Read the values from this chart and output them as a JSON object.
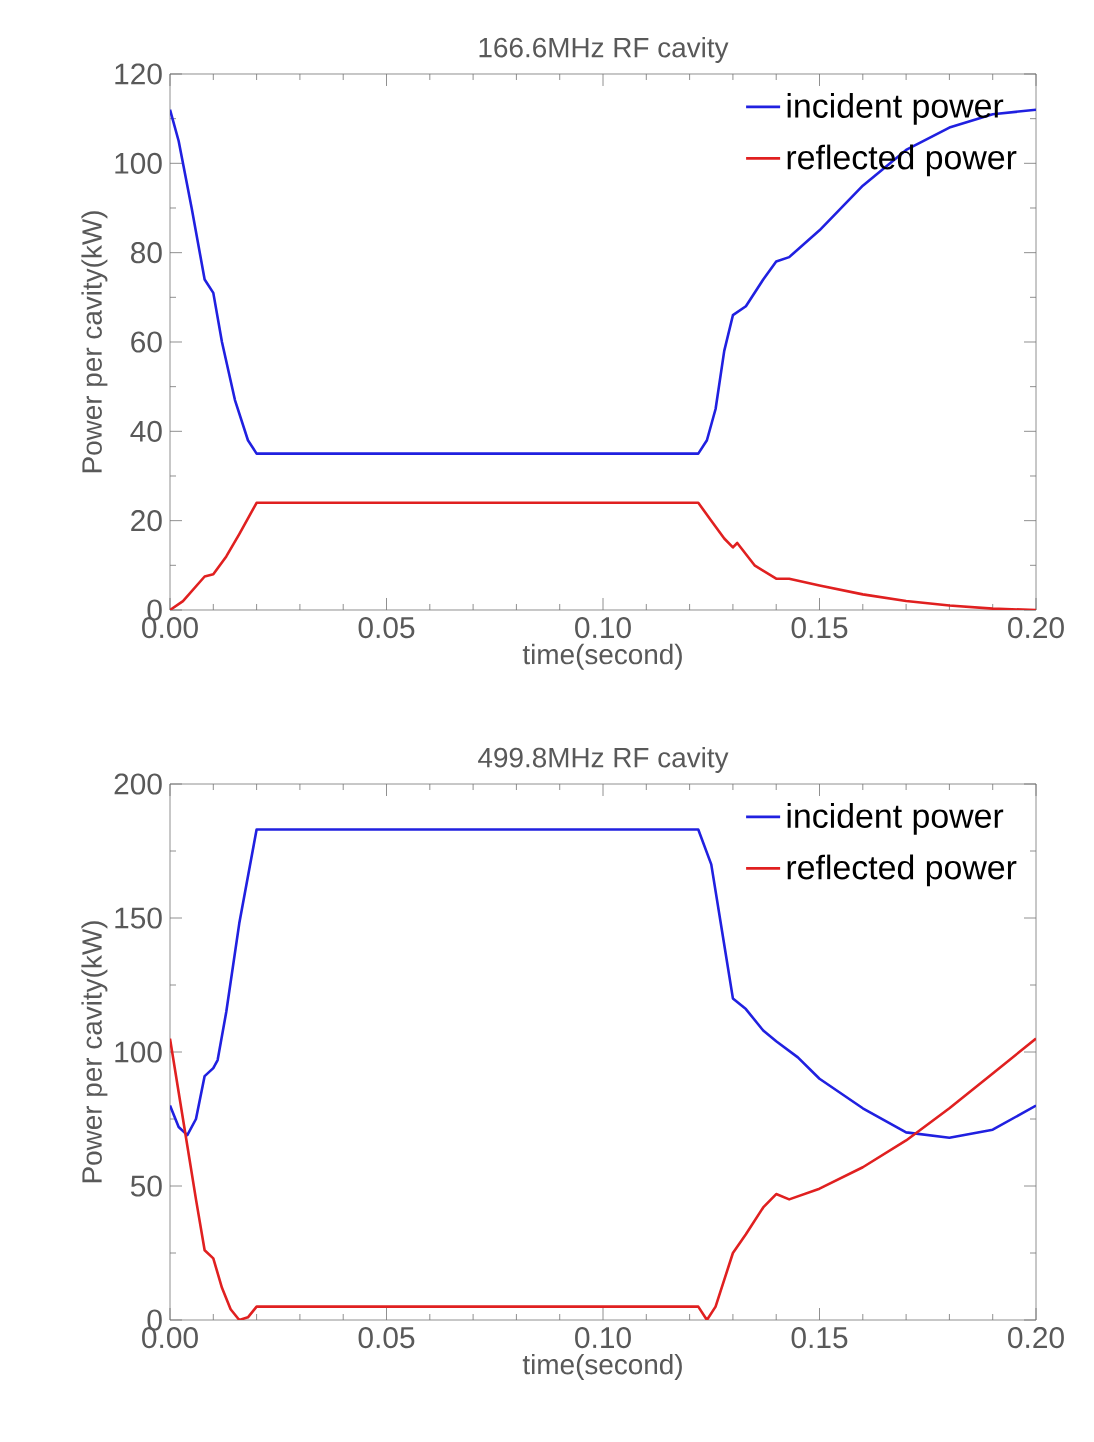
{
  "chart_data": [
    {
      "type": "line",
      "title": "166.6MHz RF cavity",
      "xlabel": "time(second)",
      "ylabel": "Power per cavity(kW)",
      "xlim": [
        0,
        0.2
      ],
      "ylim": [
        0,
        120
      ],
      "xticks": [
        {
          "value": 0,
          "label": "0.00"
        },
        {
          "value": 0.05,
          "label": "0.05"
        },
        {
          "value": 0.1,
          "label": "0.10"
        },
        {
          "value": 0.15,
          "label": "0.15"
        },
        {
          "value": 0.2,
          "label": "0.20"
        }
      ],
      "yticks": [
        0,
        20,
        40,
        60,
        80,
        100,
        120
      ],
      "grid": false,
      "legend": "top right",
      "marker": "none",
      "line_style": "solid",
      "series": [
        {
          "name": "incident power",
          "color": "#2020e0",
          "x": [
            0,
            0.002,
            0.005,
            0.008,
            0.01,
            0.012,
            0.015,
            0.018,
            0.02,
            0.122,
            0.124,
            0.126,
            0.128,
            0.13,
            0.133,
            0.137,
            0.14,
            0.143,
            0.15,
            0.16,
            0.17,
            0.18,
            0.19,
            0.2
          ],
          "values": [
            112,
            105,
            90,
            74,
            71,
            60,
            47,
            38,
            35,
            35,
            38,
            45,
            58,
            66,
            68,
            74,
            78,
            79,
            85,
            95,
            103,
            108,
            111,
            112
          ]
        },
        {
          "name": "reflected power",
          "color": "#e02020",
          "x": [
            0,
            0.003,
            0.008,
            0.01,
            0.013,
            0.016,
            0.02,
            0.122,
            0.125,
            0.128,
            0.13,
            0.131,
            0.135,
            0.14,
            0.143,
            0.15,
            0.16,
            0.17,
            0.18,
            0.19,
            0.2
          ],
          "values": [
            0,
            2,
            7.5,
            8,
            12,
            17,
            24,
            24,
            20,
            16,
            14,
            15,
            10,
            7,
            7,
            5.5,
            3.5,
            2,
            1,
            0.3,
            0
          ]
        }
      ]
    },
    {
      "type": "line",
      "title": "499.8MHz RF cavity",
      "xlabel": "time(second)",
      "ylabel": "Power per cavity(kW)",
      "xlim": [
        0,
        0.2
      ],
      "ylim": [
        0,
        200
      ],
      "xticks": [
        {
          "value": 0,
          "label": "0.00"
        },
        {
          "value": 0.05,
          "label": "0.05"
        },
        {
          "value": 0.1,
          "label": "0.10"
        },
        {
          "value": 0.15,
          "label": "0.15"
        },
        {
          "value": 0.2,
          "label": "0.20"
        }
      ],
      "yticks": [
        0,
        50,
        100,
        150,
        200
      ],
      "grid": false,
      "legend": "top right",
      "marker": "none",
      "line_style": "solid",
      "series": [
        {
          "name": "incident power",
          "color": "#2020e0",
          "x": [
            0,
            0.002,
            0.004,
            0.006,
            0.008,
            0.01,
            0.011,
            0.013,
            0.016,
            0.02,
            0.122,
            0.125,
            0.128,
            0.13,
            0.133,
            0.137,
            0.14,
            0.145,
            0.15,
            0.16,
            0.17,
            0.18,
            0.19,
            0.2
          ],
          "values": [
            80,
            72,
            69,
            75,
            91,
            94,
            97,
            115,
            148,
            183,
            183,
            170,
            140,
            120,
            116,
            108,
            104,
            98,
            90,
            79,
            70,
            68,
            71,
            80
          ]
        },
        {
          "name": "reflected power",
          "color": "#e02020",
          "x": [
            0,
            0.002,
            0.004,
            0.006,
            0.008,
            0.01,
            0.012,
            0.014,
            0.016,
            0.018,
            0.02,
            0.122,
            0.124,
            0.126,
            0.13,
            0.133,
            0.137,
            0.14,
            0.143,
            0.15,
            0.16,
            0.17,
            0.18,
            0.19,
            0.2
          ],
          "values": [
            105,
            85,
            65,
            45,
            26,
            23,
            12,
            4,
            0,
            1,
            5,
            5,
            0,
            5,
            25,
            32,
            42,
            47,
            45,
            49,
            57,
            67,
            79,
            92,
            105
          ]
        }
      ]
    }
  ]
}
